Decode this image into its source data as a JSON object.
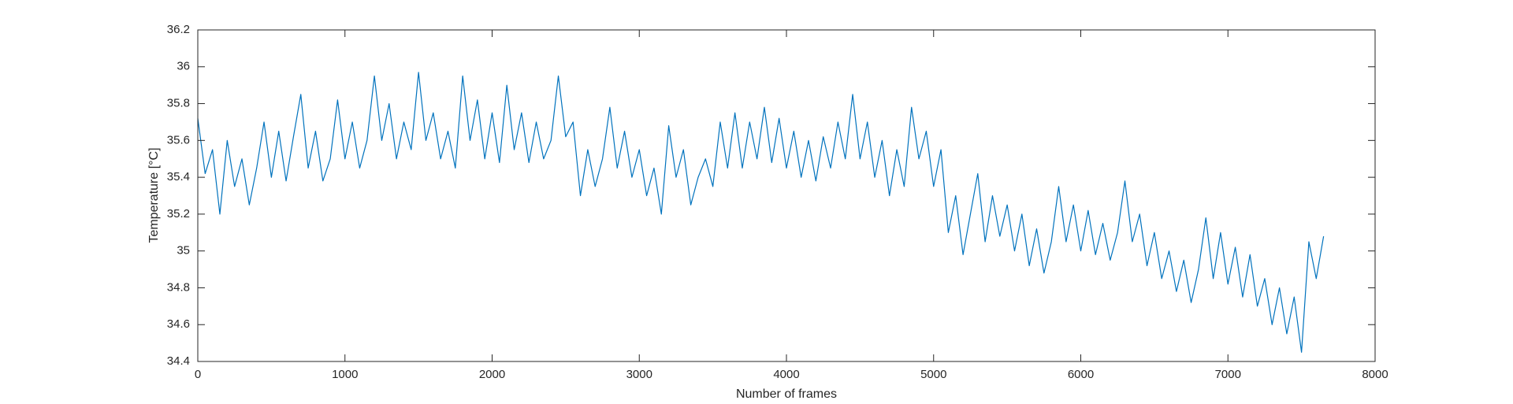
{
  "chart_data": {
    "type": "line",
    "x_label": "Number of frames",
    "y_label": "Temperature [°C]",
    "xlim": [
      0,
      8000
    ],
    "xticks": [
      0,
      1000,
      2000,
      3000,
      4000,
      5000,
      6000,
      7000,
      8000
    ],
    "ylim": [
      34.4,
      36.2
    ],
    "yticks": [
      34.4,
      34.6,
      34.8,
      35,
      35.2,
      35.4,
      35.6,
      35.8,
      36,
      36.2
    ],
    "grid": false,
    "series": [
      {
        "color": "#0072bd",
        "x": [
          0,
          50,
          100,
          150,
          200,
          250,
          300,
          350,
          400,
          450,
          500,
          550,
          600,
          650,
          700,
          750,
          800,
          850,
          900,
          950,
          1000,
          1050,
          1100,
          1150,
          1200,
          1250,
          1300,
          1350,
          1400,
          1450,
          1500,
          1550,
          1600,
          1650,
          1700,
          1750,
          1800,
          1850,
          1900,
          1950,
          2000,
          2050,
          2100,
          2150,
          2200,
          2250,
          2300,
          2350,
          2400,
          2450,
          2500,
          2550,
          2600,
          2650,
          2700,
          2750,
          2800,
          2850,
          2900,
          2950,
          3000,
          3050,
          3100,
          3150,
          3200,
          3250,
          3300,
          3350,
          3400,
          3450,
          3500,
          3550,
          3600,
          3650,
          3700,
          3750,
          3800,
          3850,
          3900,
          3950,
          4000,
          4050,
          4100,
          4150,
          4200,
          4250,
          4300,
          4350,
          4400,
          4450,
          4500,
          4550,
          4600,
          4650,
          4700,
          4750,
          4800,
          4850,
          4900,
          4950,
          5000,
          5050,
          5100,
          5150,
          5200,
          5250,
          5300,
          5350,
          5400,
          5450,
          5500,
          5550,
          5600,
          5650,
          5700,
          5750,
          5800,
          5850,
          5900,
          5950,
          6000,
          6050,
          6100,
          6150,
          6200,
          6250,
          6300,
          6350,
          6400,
          6450,
          6500,
          6550,
          6600,
          6650,
          6700,
          6750,
          6800,
          6850,
          6900,
          6950,
          7000,
          7050,
          7100,
          7150,
          7200,
          7250,
          7300,
          7350,
          7400,
          7450,
          7500,
          7550,
          7600,
          7650
        ],
        "values": [
          35.72,
          35.42,
          35.55,
          35.2,
          35.6,
          35.35,
          35.5,
          35.25,
          35.45,
          35.7,
          35.4,
          35.65,
          35.38,
          35.62,
          35.85,
          35.45,
          35.65,
          35.38,
          35.5,
          35.82,
          35.5,
          35.7,
          35.45,
          35.6,
          35.95,
          35.6,
          35.8,
          35.5,
          35.7,
          35.55,
          35.97,
          35.6,
          35.75,
          35.5,
          35.65,
          35.45,
          35.95,
          35.6,
          35.82,
          35.5,
          35.75,
          35.48,
          35.9,
          35.55,
          35.75,
          35.48,
          35.7,
          35.5,
          35.6,
          35.95,
          35.62,
          35.7,
          35.3,
          35.55,
          35.35,
          35.5,
          35.78,
          35.45,
          35.65,
          35.4,
          35.55,
          35.3,
          35.45,
          35.2,
          35.68,
          35.4,
          35.55,
          35.25,
          35.4,
          35.5,
          35.35,
          35.7,
          35.45,
          35.75,
          35.45,
          35.7,
          35.5,
          35.78,
          35.48,
          35.72,
          35.45,
          35.65,
          35.4,
          35.6,
          35.38,
          35.62,
          35.45,
          35.7,
          35.5,
          35.85,
          35.5,
          35.7,
          35.4,
          35.6,
          35.3,
          35.55,
          35.35,
          35.78,
          35.5,
          35.65,
          35.35,
          35.55,
          35.1,
          35.3,
          34.98,
          35.2,
          35.42,
          35.05,
          35.3,
          35.08,
          35.25,
          35.0,
          35.2,
          34.92,
          35.12,
          34.88,
          35.05,
          35.35,
          35.05,
          35.25,
          35.0,
          35.22,
          34.98,
          35.15,
          34.95,
          35.1,
          35.38,
          35.05,
          35.2,
          34.92,
          35.1,
          34.85,
          35.0,
          34.78,
          34.95,
          34.72,
          34.9,
          35.18,
          34.85,
          35.1,
          34.82,
          35.02,
          34.75,
          34.98,
          34.7,
          34.85,
          34.6,
          34.8,
          34.55,
          34.75,
          34.45,
          35.05,
          34.85,
          35.08
        ]
      }
    ]
  }
}
